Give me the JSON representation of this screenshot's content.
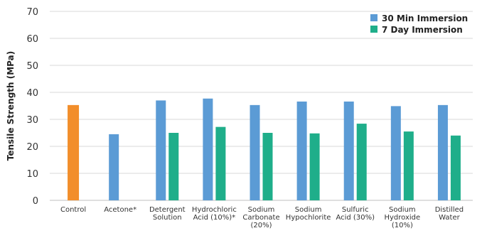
{
  "chart_data": {
    "type": "bar",
    "ylabel": "Tensile Strength (MPa)",
    "xlabel": "",
    "ylim": [
      0,
      70
    ],
    "yticks": [
      0,
      10,
      20,
      30,
      40,
      50,
      60,
      70
    ],
    "grid": true,
    "legend_position": "top-right",
    "categories": [
      [
        "Control"
      ],
      [
        "Acetone*"
      ],
      [
        "Detergent",
        "Solution"
      ],
      [
        "Hydrochloric",
        "Acid (10%)*"
      ],
      [
        "Sodium",
        "Carbonate",
        "(20%)"
      ],
      [
        "Sodium",
        "Hypochlorite"
      ],
      [
        "Sulfuric",
        "Acid (30%)"
      ],
      [
        "Sodium",
        "Hydroxide",
        "(10%)"
      ],
      [
        "Distilled",
        "Water"
      ]
    ],
    "control": {
      "value": 35.3,
      "color": "#f28e2b"
    },
    "series": [
      {
        "name": "30 Min Immersion",
        "color": "#5b9bd5",
        "values": [
          null,
          24.5,
          37.0,
          37.7,
          35.3,
          36.6,
          36.6,
          34.9,
          35.3
        ]
      },
      {
        "name": "7 Day Immersion",
        "color": "#1fae8a",
        "values": [
          null,
          null,
          25.0,
          27.2,
          25.0,
          24.8,
          28.4,
          25.5,
          24.0
        ]
      }
    ]
  }
}
